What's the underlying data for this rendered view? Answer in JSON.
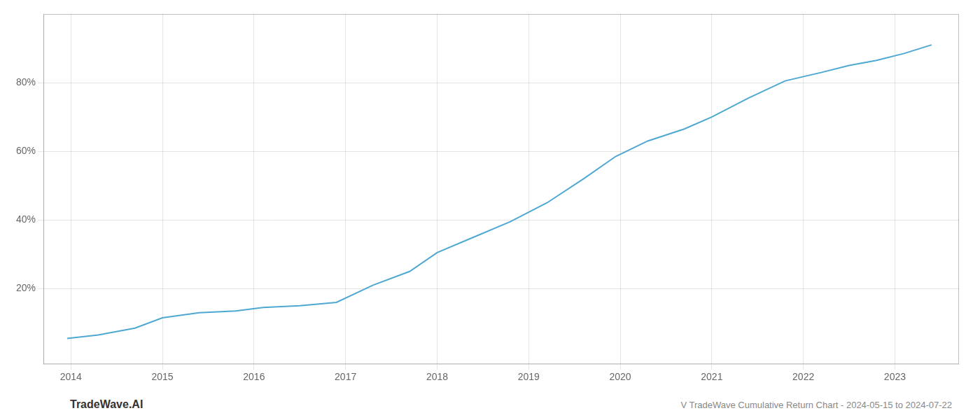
{
  "chart_data": {
    "type": "line",
    "x": [
      2013.96,
      2014.3,
      2014.7,
      2015.0,
      2015.4,
      2015.8,
      2016.1,
      2016.5,
      2016.9,
      2017.3,
      2017.7,
      2018.0,
      2018.4,
      2018.8,
      2019.2,
      2019.6,
      2019.95,
      2020.3,
      2020.7,
      2021.0,
      2021.4,
      2021.8,
      2022.2,
      2022.5,
      2022.8,
      2023.1,
      2023.4
    ],
    "values": [
      5.5,
      6.5,
      8.5,
      11.5,
      13.0,
      13.5,
      14.5,
      15.0,
      16.0,
      21.0,
      25.0,
      30.5,
      35.0,
      39.5,
      45.0,
      52.0,
      58.5,
      63.0,
      66.5,
      70.0,
      75.5,
      80.5,
      83.0,
      85.0,
      86.5,
      88.5,
      91.0
    ],
    "color": "#4ea8d2",
    "xlim": [
      2013.7,
      2023.7
    ],
    "xticks": [
      2014,
      2015,
      2016,
      2017,
      2018,
      2019,
      2020,
      2021,
      2022,
      2023
    ],
    "ylim": [
      -2,
      100
    ],
    "yticks": [
      {
        "value": 20,
        "label": "20%"
      },
      {
        "value": 40,
        "label": "40%"
      },
      {
        "value": 60,
        "label": "60%"
      },
      {
        "value": 80,
        "label": "80%"
      }
    ],
    "grid": true,
    "annotations": [
      "TradeWave.AI",
      "V TradeWave Cumulative Return Chart - 2024-05-15 to 2024-07-22"
    ]
  }
}
